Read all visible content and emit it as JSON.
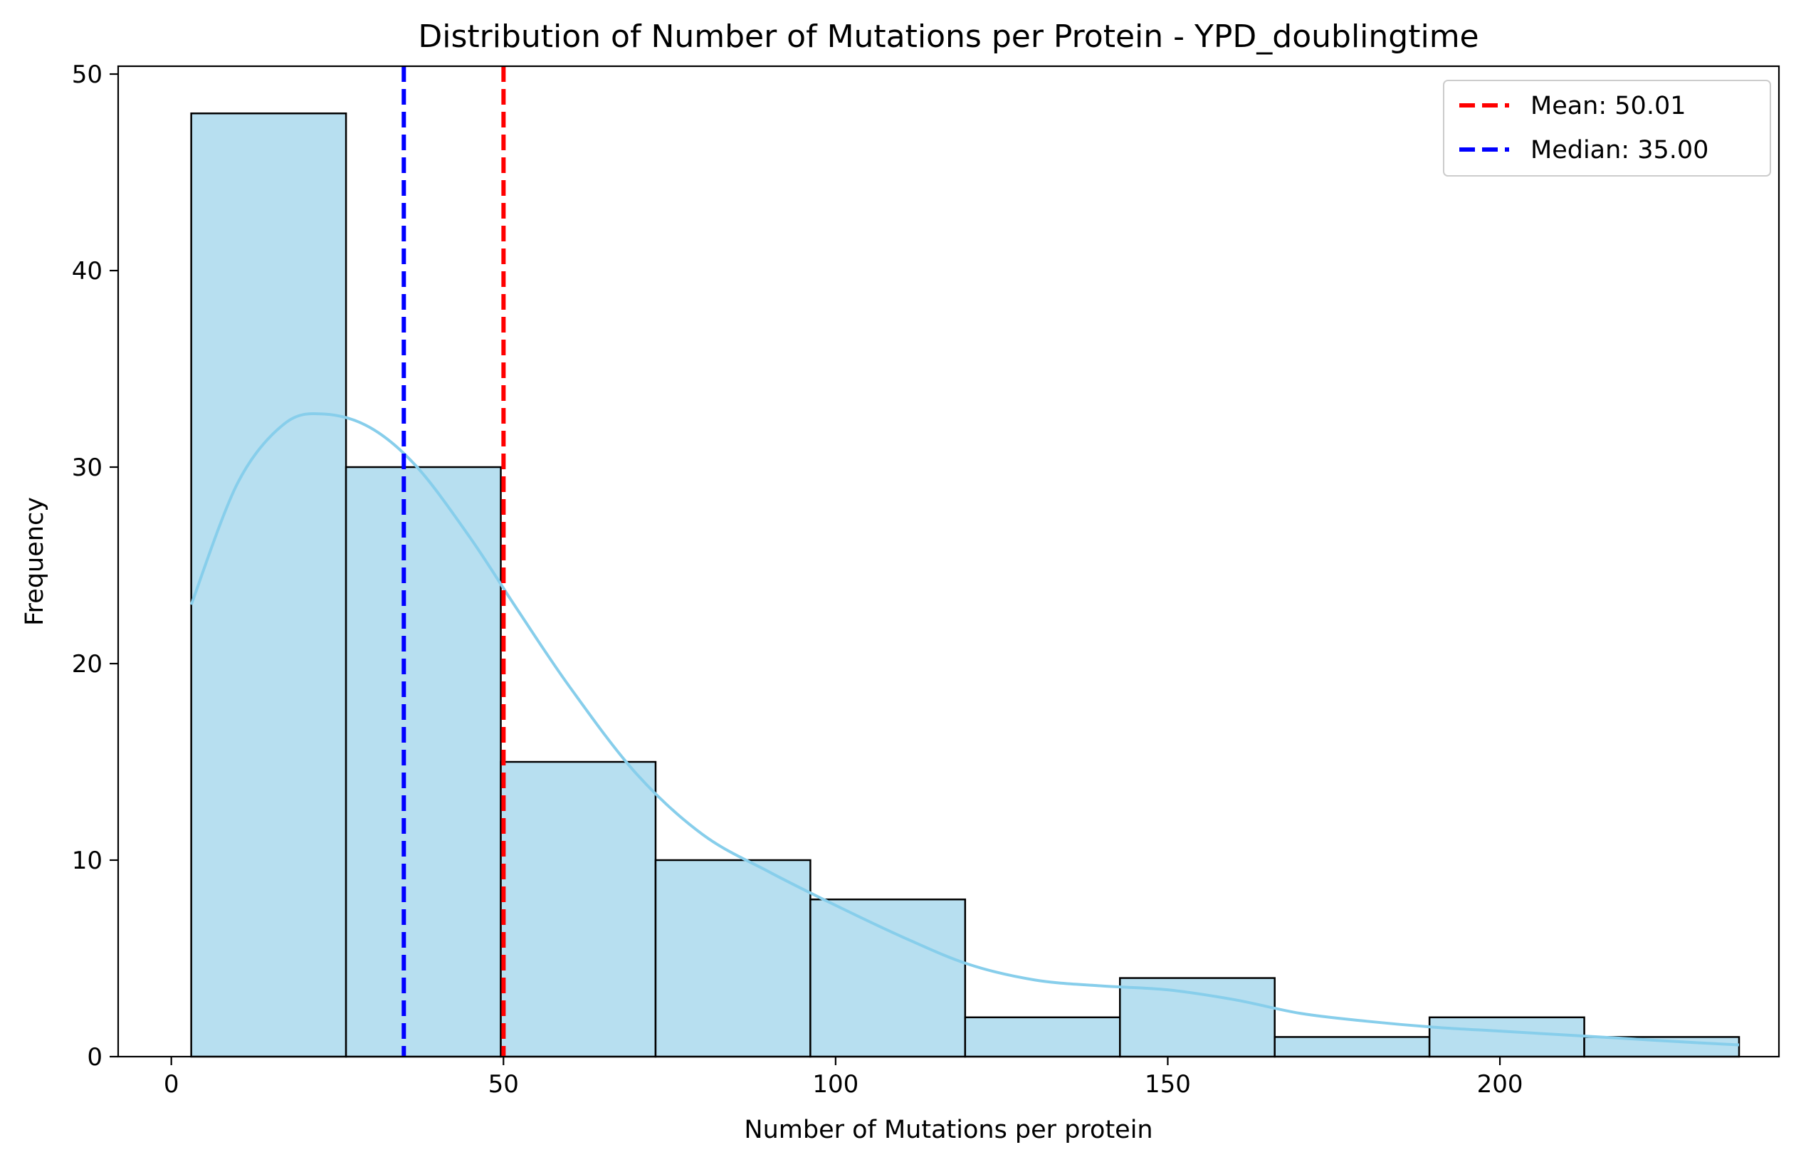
{
  "chart_data": {
    "type": "histogram",
    "title": "Distribution of Number of Mutations per Protein - YPD_doublingtime",
    "xlabel": "Number of Mutations per protein",
    "ylabel": "Frequency",
    "xlim": [
      -8,
      242
    ],
    "ylim": [
      0,
      50.4
    ],
    "x_ticks": [
      0,
      50,
      100,
      150,
      200
    ],
    "y_ticks": [
      0,
      10,
      20,
      30,
      40,
      50
    ],
    "grid": false,
    "bin_edges": [
      3,
      26.3,
      49.6,
      72.9,
      96.2,
      119.5,
      142.8,
      166.1,
      189.4,
      212.7,
      236
    ],
    "counts": [
      48,
      30,
      15,
      10,
      8,
      2,
      4,
      1,
      2,
      1
    ],
    "bar_fill": "#b7dff0",
    "bar_edge": "#000000",
    "kde": {
      "color": "#87ceeb",
      "x": [
        3,
        10,
        17,
        23,
        30,
        37,
        45,
        52,
        60,
        70,
        80,
        90,
        100,
        110,
        120,
        130,
        140,
        150,
        160,
        170,
        180,
        190,
        200,
        210,
        220,
        230,
        236
      ],
      "y": [
        23,
        29.2,
        32.2,
        32.7,
        32,
        30,
        26.4,
        22.8,
        18.8,
        14.4,
        11.3,
        9.4,
        7.7,
        6.1,
        4.7,
        3.9,
        3.6,
        3.4,
        2.9,
        2.2,
        1.8,
        1.5,
        1.3,
        1.1,
        0.9,
        0.7,
        0.6
      ]
    },
    "lines": [
      {
        "name": "Mean: 50.01",
        "x": 50.01,
        "color": "#ff0000"
      },
      {
        "name": "Median: 35.00",
        "x": 35.0,
        "color": "#0000ff"
      }
    ],
    "legend_position": "top-right"
  }
}
